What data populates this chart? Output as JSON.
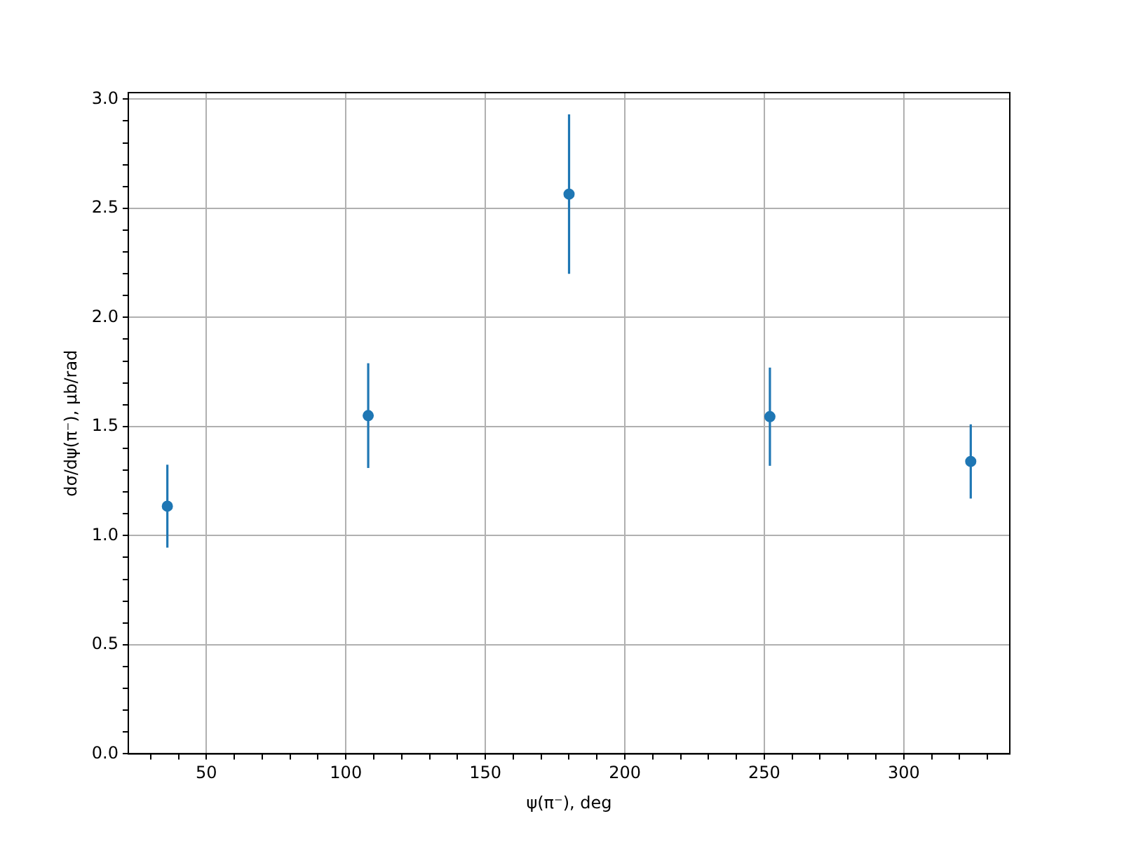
{
  "chart_data": {
    "type": "scatter",
    "xlabel": "ψ(π⁻), deg",
    "ylabel": "dσ/dψ(π⁻), μb/rad",
    "x": [
      36,
      108,
      180,
      252,
      324
    ],
    "series": [
      {
        "color": "#1f77b4",
        "values": [
          1.135,
          1.55,
          2.565,
          1.545,
          1.34
        ],
        "errors": [
          0.19,
          0.24,
          0.365,
          0.225,
          0.17
        ]
      }
    ],
    "marker": "circle",
    "grid": true,
    "legend": false,
    "xlim": [
      22,
      338
    ],
    "xticks": [
      {
        "value": 30,
        "label": null
      },
      {
        "value": 40,
        "label": null
      },
      50,
      {
        "value": 60,
        "label": null
      },
      {
        "value": 70,
        "label": null
      },
      {
        "value": 80,
        "label": null
      },
      {
        "value": 90,
        "label": null
      },
      100,
      {
        "value": 110,
        "label": null
      },
      {
        "value": 120,
        "label": null
      },
      {
        "value": 130,
        "label": null
      },
      {
        "value": 140,
        "label": null
      },
      150,
      {
        "value": 160,
        "label": null
      },
      {
        "value": 170,
        "label": null
      },
      {
        "value": 180,
        "label": null
      },
      {
        "value": 190,
        "label": null
      },
      200,
      {
        "value": 210,
        "label": null
      },
      {
        "value": 220,
        "label": null
      },
      {
        "value": 230,
        "label": null
      },
      {
        "value": 240,
        "label": null
      },
      250,
      {
        "value": 260,
        "label": null
      },
      {
        "value": 270,
        "label": null
      },
      {
        "value": 280,
        "label": null
      },
      {
        "value": 290,
        "label": null
      },
      300,
      {
        "value": 310,
        "label": null
      },
      {
        "value": 320,
        "label": null
      },
      {
        "value": 330,
        "label": null
      }
    ],
    "ylim": [
      0,
      3.03
    ],
    "yticks": [
      {
        "value": 0,
        "label": "0.0"
      },
      {
        "value": 0.1,
        "label": null
      },
      {
        "value": 0.2,
        "label": null
      },
      {
        "value": 0.3,
        "label": null
      },
      {
        "value": 0.4,
        "label": null
      },
      {
        "value": 0.5,
        "label": "0.5"
      },
      {
        "value": 0.6,
        "label": null
      },
      {
        "value": 0.7,
        "label": null
      },
      {
        "value": 0.8,
        "label": null
      },
      {
        "value": 0.9,
        "label": null
      },
      {
        "value": 1,
        "label": "1.0"
      },
      {
        "value": 1.1,
        "label": null
      },
      {
        "value": 1.2,
        "label": null
      },
      {
        "value": 1.3,
        "label": null
      },
      {
        "value": 1.4,
        "label": null
      },
      {
        "value": 1.5,
        "label": "1.5"
      },
      {
        "value": 1.6,
        "label": null
      },
      {
        "value": 1.7,
        "label": null
      },
      {
        "value": 1.8,
        "label": null
      },
      {
        "value": 1.9,
        "label": null
      },
      {
        "value": 2,
        "label": "2.0"
      },
      {
        "value": 2.1,
        "label": null
      },
      {
        "value": 2.2,
        "label": null
      },
      {
        "value": 2.3,
        "label": null
      },
      {
        "value": 2.4,
        "label": null
      },
      {
        "value": 2.5,
        "label": "2.5"
      },
      {
        "value": 2.6,
        "label": null
      },
      {
        "value": 2.7,
        "label": null
      },
      {
        "value": 2.8,
        "label": null
      },
      {
        "value": 2.9,
        "label": null
      },
      {
        "value": 3,
        "label": "3.0"
      }
    ]
  }
}
